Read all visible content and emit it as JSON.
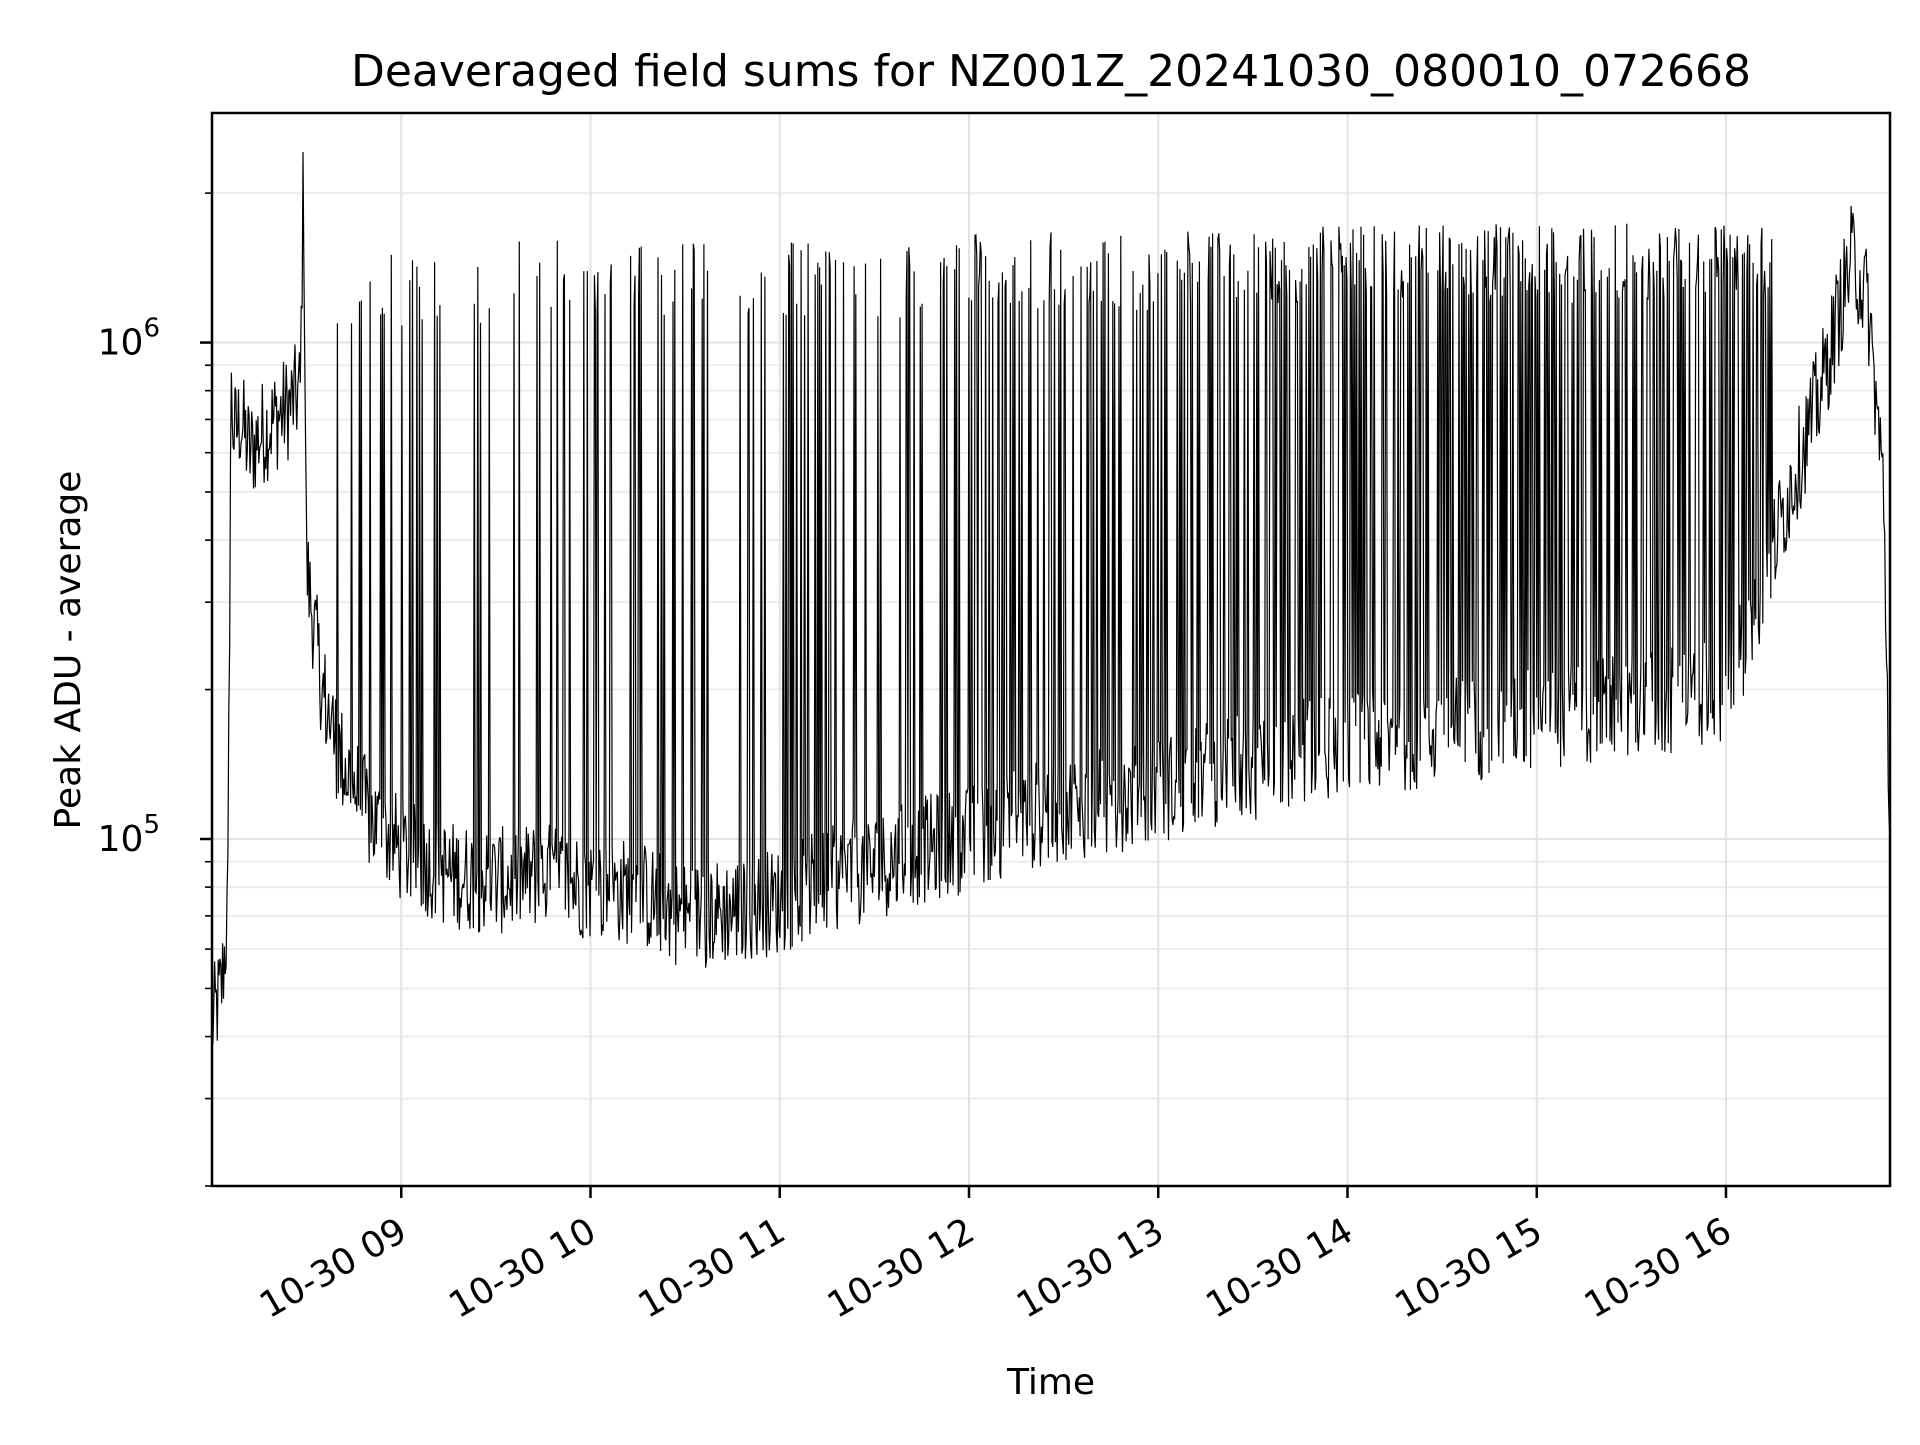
{
  "chart_data": {
    "type": "line",
    "title": "Deaveraged field sums for NZ001Z_20241030_080010_072668",
    "xlabel": "Time",
    "ylabel": "Peak ADU - average",
    "yscale": "log",
    "grid": true,
    "legend": "none",
    "xlim": [
      "2024-10-30 08:00",
      "2024-10-30 16:52"
    ],
    "ylim": [
      20000,
      2900000
    ],
    "x_ticks": [
      {
        "value": "2024-10-30 09:00",
        "label": "10-30 09"
      },
      {
        "value": "2024-10-30 10:00",
        "label": "10-30 10"
      },
      {
        "value": "2024-10-30 11:00",
        "label": "10-30 11"
      },
      {
        "value": "2024-10-30 12:00",
        "label": "10-30 12"
      },
      {
        "value": "2024-10-30 13:00",
        "label": "10-30 13"
      },
      {
        "value": "2024-10-30 14:00",
        "label": "10-30 14"
      },
      {
        "value": "2024-10-30 15:00",
        "label": "10-30 15"
      },
      {
        "value": "2024-10-30 16:00",
        "label": "10-30 16"
      }
    ],
    "y_ticks": [
      {
        "value": 100000,
        "base": "10",
        "exp": "5"
      },
      {
        "value": 1000000,
        "base": "10",
        "exp": "6"
      }
    ],
    "series_color": "#000000",
    "series": [
      {
        "x": [
          "2024-10-30 08:00",
          "2024-10-30 08:03",
          "2024-10-30 08:05",
          "2024-10-30 08:06",
          "2024-10-30 08:07",
          "2024-10-30 08:09",
          "2024-10-30 08:12",
          "2024-10-30 08:15",
          "2024-10-30 08:20",
          "2024-10-30 08:25",
          "2024-10-30 08:28",
          "2024-10-30 08:29",
          "2024-10-30 08:30",
          "2024-10-30 08:35",
          "2024-10-30 08:40",
          "2024-10-30 08:50",
          "2024-10-30 09:00",
          "2024-10-30 09:15",
          "2024-10-30 09:30",
          "2024-10-30 09:45",
          "2024-10-30 10:00",
          "2024-10-30 10:15",
          "2024-10-30 10:30",
          "2024-10-30 10:45",
          "2024-10-30 11:00",
          "2024-10-30 11:15",
          "2024-10-30 11:30",
          "2024-10-30 11:45",
          "2024-10-30 12:00",
          "2024-10-30 12:15",
          "2024-10-30 12:30",
          "2024-10-30 12:45",
          "2024-10-30 13:00",
          "2024-10-30 13:15",
          "2024-10-30 13:30",
          "2024-10-30 13:45",
          "2024-10-30 14:00",
          "2024-10-30 14:15",
          "2024-10-30 14:30",
          "2024-10-30 14:45",
          "2024-10-30 15:00",
          "2024-10-30 15:15",
          "2024-10-30 15:30",
          "2024-10-30 15:45",
          "2024-10-30 16:00",
          "2024-10-30 16:10",
          "2024-10-30 16:20",
          "2024-10-30 16:30",
          "2024-10-30 16:40",
          "2024-10-30 16:45",
          "2024-10-30 16:50",
          "2024-10-30 16:52"
        ],
        "y": [
          42000,
          50000,
          70000,
          800000,
          650000,
          700000,
          600000,
          650000,
          700000,
          750000,
          800000,
          2300000,
          350000,
          200000,
          150000,
          110000,
          95000,
          85000,
          82000,
          85000,
          80000,
          78000,
          70000,
          72000,
          75000,
          82000,
          88000,
          95000,
          100000,
          110000,
          115000,
          120000,
          125000,
          135000,
          140000,
          150000,
          155000,
          160000,
          165000,
          170000,
          175000,
          180000,
          185000,
          190000,
          200000,
          300000,
          500000,
          800000,
          1500000,
          1200000,
          500000,
          100000
        ],
        "spike_tops": [
          {
            "t_start": "2024-10-30 08:35",
            "t_end": "2024-10-30 09:30",
            "y": 1300000
          },
          {
            "t_start": "2024-10-30 09:30",
            "t_end": "2024-10-30 12:00",
            "y": 1400000
          },
          {
            "t_start": "2024-10-30 12:00",
            "t_end": "2024-10-30 13:45",
            "y": 1450000
          },
          {
            "t_start": "2024-10-30 13:45",
            "t_end": "2024-10-30 16:15",
            "y": 1500000
          }
        ]
      }
    ]
  }
}
